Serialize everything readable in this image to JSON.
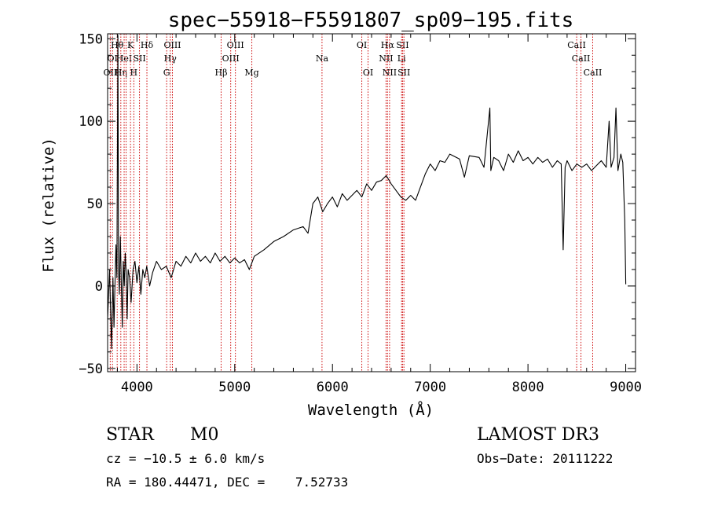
{
  "chart_data": {
    "type": "line",
    "title": "spec−55918−F5591807_sp09−195.fits",
    "xlabel": "Wavelength (Å)",
    "ylabel": "Flux (relative)",
    "xlim": [
      3700,
      9100
    ],
    "ylim": [
      -52,
      153
    ],
    "x_ticks": [
      {
        "v": 4000,
        "label": "4000"
      },
      {
        "v": 5000,
        "label": "5000"
      },
      {
        "v": 6000,
        "label": "6000"
      },
      {
        "v": 7000,
        "label": "7000"
      },
      {
        "v": 8000,
        "label": "8000"
      },
      {
        "v": 9000,
        "label": "9000"
      }
    ],
    "y_ticks": [
      {
        "v": -50,
        "label": "−50"
      },
      {
        "v": 0,
        "label": "0"
      },
      {
        "v": 50,
        "label": "50"
      },
      {
        "v": 100,
        "label": "100"
      },
      {
        "v": 150,
        "label": "150"
      }
    ],
    "series": [
      {
        "name": "spectrum",
        "color": "#000000",
        "points": [
          [
            3700,
            -20
          ],
          [
            3720,
            10
          ],
          [
            3740,
            -38
          ],
          [
            3755,
            5
          ],
          [
            3765,
            -25
          ],
          [
            3775,
            0
          ],
          [
            3785,
            25
          ],
          [
            3795,
            5
          ],
          [
            3805,
            152
          ],
          [
            3812,
            10
          ],
          [
            3820,
            -5
          ],
          [
            3830,
            30
          ],
          [
            3840,
            2
          ],
          [
            3850,
            -25
          ],
          [
            3860,
            15
          ],
          [
            3870,
            0
          ],
          [
            3880,
            20
          ],
          [
            3890,
            8
          ],
          [
            3900,
            -20
          ],
          [
            3910,
            10
          ],
          [
            3925,
            5
          ],
          [
            3940,
            -10
          ],
          [
            3960,
            10
          ],
          [
            3980,
            15
          ],
          [
            4000,
            2
          ],
          [
            4020,
            12
          ],
          [
            4040,
            -5
          ],
          [
            4060,
            10
          ],
          [
            4080,
            5
          ],
          [
            4100,
            12
          ],
          [
            4130,
            0
          ],
          [
            4160,
            8
          ],
          [
            4200,
            15
          ],
          [
            4250,
            10
          ],
          [
            4300,
            12
          ],
          [
            4350,
            5
          ],
          [
            4400,
            15
          ],
          [
            4450,
            12
          ],
          [
            4500,
            18
          ],
          [
            4550,
            14
          ],
          [
            4600,
            20
          ],
          [
            4650,
            15
          ],
          [
            4700,
            18
          ],
          [
            4750,
            14
          ],
          [
            4800,
            20
          ],
          [
            4850,
            15
          ],
          [
            4900,
            18
          ],
          [
            4950,
            14
          ],
          [
            5000,
            17
          ],
          [
            5050,
            14
          ],
          [
            5100,
            16
          ],
          [
            5150,
            10
          ],
          [
            5200,
            18
          ],
          [
            5300,
            22
          ],
          [
            5400,
            27
          ],
          [
            5500,
            30
          ],
          [
            5600,
            34
          ],
          [
            5700,
            36
          ],
          [
            5750,
            32
          ],
          [
            5800,
            50
          ],
          [
            5850,
            54
          ],
          [
            5900,
            45
          ],
          [
            5950,
            50
          ],
          [
            6000,
            54
          ],
          [
            6050,
            48
          ],
          [
            6100,
            56
          ],
          [
            6150,
            52
          ],
          [
            6200,
            55
          ],
          [
            6250,
            58
          ],
          [
            6300,
            54
          ],
          [
            6350,
            62
          ],
          [
            6400,
            58
          ],
          [
            6450,
            63
          ],
          [
            6500,
            64
          ],
          [
            6550,
            67
          ],
          [
            6600,
            62
          ],
          [
            6650,
            58
          ],
          [
            6700,
            54
          ],
          [
            6750,
            52
          ],
          [
            6800,
            55
          ],
          [
            6850,
            52
          ],
          [
            6900,
            60
          ],
          [
            6950,
            68
          ],
          [
            7000,
            74
          ],
          [
            7050,
            70
          ],
          [
            7100,
            76
          ],
          [
            7150,
            75
          ],
          [
            7200,
            80
          ],
          [
            7300,
            77
          ],
          [
            7350,
            66
          ],
          [
            7400,
            79
          ],
          [
            7500,
            78
          ],
          [
            7550,
            72
          ],
          [
            7610,
            108
          ],
          [
            7620,
            70
          ],
          [
            7650,
            78
          ],
          [
            7700,
            76
          ],
          [
            7750,
            70
          ],
          [
            7800,
            80
          ],
          [
            7850,
            75
          ],
          [
            7900,
            82
          ],
          [
            7950,
            76
          ],
          [
            8000,
            78
          ],
          [
            8050,
            74
          ],
          [
            8100,
            78
          ],
          [
            8150,
            75
          ],
          [
            8200,
            77
          ],
          [
            8250,
            72
          ],
          [
            8300,
            76
          ],
          [
            8340,
            74
          ],
          [
            8360,
            22
          ],
          [
            8380,
            72
          ],
          [
            8400,
            76
          ],
          [
            8450,
            70
          ],
          [
            8500,
            74
          ],
          [
            8550,
            72
          ],
          [
            8600,
            74
          ],
          [
            8650,
            70
          ],
          [
            8700,
            73
          ],
          [
            8750,
            76
          ],
          [
            8800,
            72
          ],
          [
            8830,
            100
          ],
          [
            8850,
            72
          ],
          [
            8880,
            78
          ],
          [
            8900,
            108
          ],
          [
            8920,
            70
          ],
          [
            8950,
            80
          ],
          [
            8970,
            75
          ],
          [
            8990,
            40
          ],
          [
            9000,
            1
          ]
        ]
      }
    ],
    "lines": [
      {
        "wl": 3727,
        "label": "OII",
        "row": 2
      },
      {
        "wl": 3750,
        "label": "OI",
        "row": 1
      },
      {
        "wl": 3798,
        "label": "Hθ",
        "row": 0
      },
      {
        "wl": 3835,
        "label": "Hη",
        "row": 2
      },
      {
        "wl": 3869,
        "label": "HeI",
        "row": 1
      },
      {
        "wl": 3889,
        "label": "",
        "row": 0
      },
      {
        "wl": 3934,
        "label": "K",
        "row": 0
      },
      {
        "wl": 3968,
        "label": "H",
        "row": 2
      },
      {
        "wl": 4026,
        "label": "SII",
        "row": 1
      },
      {
        "wl": 4102,
        "label": "Hδ",
        "row": 0
      },
      {
        "wl": 4304,
        "label": "G",
        "row": 2
      },
      {
        "wl": 4341,
        "label": "Hγ",
        "row": 1
      },
      {
        "wl": 4363,
        "label": "OIII",
        "row": 0
      },
      {
        "wl": 4861,
        "label": "Hβ",
        "row": 2
      },
      {
        "wl": 4959,
        "label": "OIII",
        "row": 1
      },
      {
        "wl": 5007,
        "label": "OIII",
        "row": 0
      },
      {
        "wl": 5175,
        "label": "Mg",
        "row": 2
      },
      {
        "wl": 5893,
        "label": "Na",
        "row": 1
      },
      {
        "wl": 6300,
        "label": "OI",
        "row": 0
      },
      {
        "wl": 6364,
        "label": "OI",
        "row": 2
      },
      {
        "wl": 6548,
        "label": "NII",
        "row": 1
      },
      {
        "wl": 6563,
        "label": "Hα",
        "row": 0
      },
      {
        "wl": 6584,
        "label": "NII",
        "row": 2
      },
      {
        "wl": 6707,
        "label": "Li",
        "row": 1
      },
      {
        "wl": 6717,
        "label": "SII",
        "row": 0
      },
      {
        "wl": 6731,
        "label": "SII",
        "row": 2
      },
      {
        "wl": 8498,
        "label": "CaII",
        "row": 0
      },
      {
        "wl": 8542,
        "label": "CaII",
        "row": 1
      },
      {
        "wl": 8662,
        "label": "CaII",
        "row": 2
      }
    ],
    "line_color": "#cc0000"
  },
  "footer": {
    "object_class": "STAR",
    "subclass": "M0",
    "cz": "cz = −10.5 ± 6.0 km/s",
    "radec": "RA = 180.44471, DEC =    7.52733",
    "survey": "LAMOST DR3",
    "obs_date": "Obs−Date: 20111222"
  }
}
